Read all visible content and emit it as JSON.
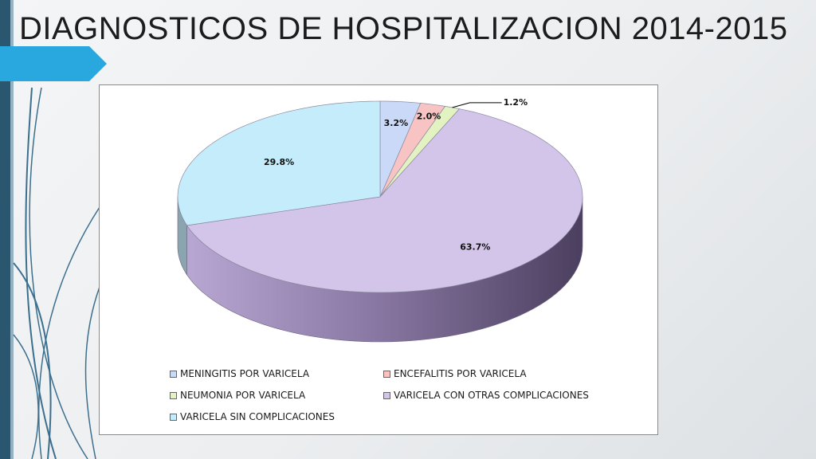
{
  "slide": {
    "title": "DIAGNOSTICOS DE HOSPITALIZACION 2014-2015",
    "colors": {
      "accent": "#29a8e0",
      "left_bar": "#2b5670"
    }
  },
  "chart_data": {
    "type": "pie",
    "style": "3d",
    "title": "",
    "labels": [
      "MENINGITIS POR VARICELA",
      "ENCEFALITIS POR VARICELA",
      "NEUMONIA POR VARICELA",
      "VARICELA CON OTRAS COMPLICACIONES",
      "VARICELA SIN COMPLICACIONES"
    ],
    "values": [
      3.2,
      2.0,
      1.2,
      63.7,
      29.8
    ],
    "data_labels": [
      "3.2%",
      "2.0%",
      "1.2%",
      "63.7%",
      "29.8%"
    ],
    "colors": [
      "#c9d9f7",
      "#f7c3c3",
      "#e2f2c0",
      "#d3c4ea",
      "#c5ecfa"
    ],
    "legend_position": "bottom"
  }
}
